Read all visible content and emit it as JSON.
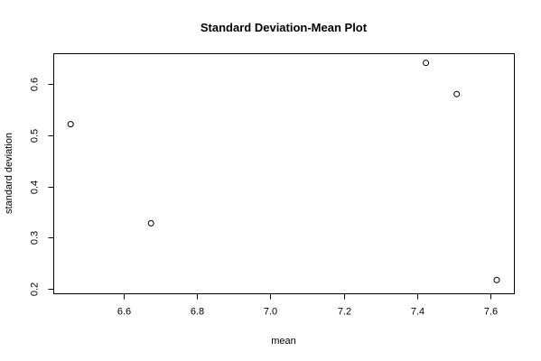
{
  "chart_data": {
    "type": "scatter",
    "title": "Standard Deviation-Mean Plot",
    "xlabel": "mean",
    "ylabel": "standard deviation",
    "xlim": [
      6.41,
      7.665
    ],
    "ylim": [
      0.19,
      0.66
    ],
    "x_ticks": [
      6.6,
      6.8,
      7.0,
      7.2,
      7.4,
      7.6
    ],
    "x_tick_labels": [
      "6.6",
      "6.8",
      "7.0",
      "7.2",
      "7.4",
      "7.6"
    ],
    "y_ticks": [
      0.2,
      0.3,
      0.4,
      0.5,
      0.6
    ],
    "y_tick_labels": [
      "0.2",
      "0.3",
      "0.4",
      "0.5",
      "0.6"
    ],
    "grid": false,
    "points": [
      {
        "x": 6.456,
        "y": 0.522
      },
      {
        "x": 6.675,
        "y": 0.328
      },
      {
        "x": 7.424,
        "y": 0.642
      },
      {
        "x": 7.508,
        "y": 0.581
      },
      {
        "x": 7.617,
        "y": 0.217
      }
    ]
  }
}
